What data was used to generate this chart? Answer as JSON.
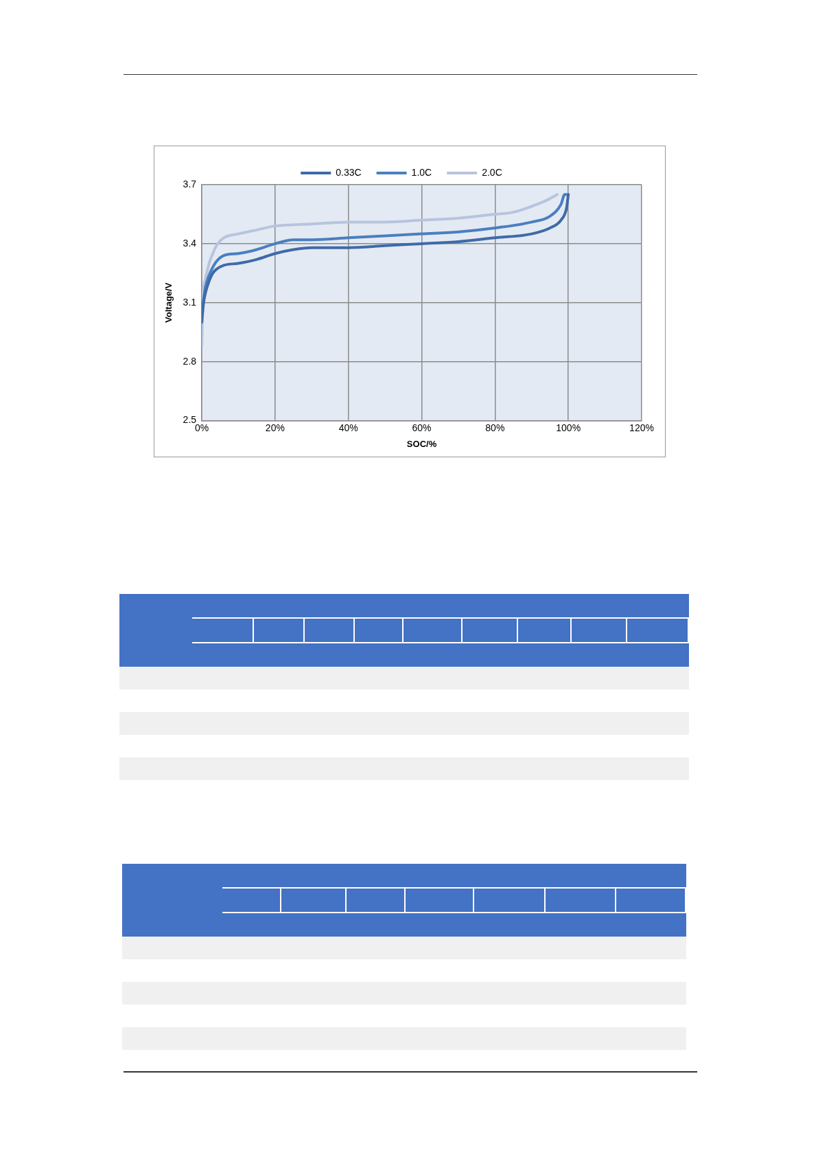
{
  "chart_data": {
    "type": "line",
    "xlabel": "SOC/%",
    "ylabel": "Voltage/V",
    "xlim": [
      0,
      120
    ],
    "xticks": [
      {
        "value": 0,
        "label": "0%"
      },
      {
        "value": 20,
        "label": "20%"
      },
      {
        "value": 40,
        "label": "40%"
      },
      {
        "value": 60,
        "label": "60%"
      },
      {
        "value": 80,
        "label": "80%"
      },
      {
        "value": 100,
        "label": "100%"
      },
      {
        "value": 120,
        "label": "120%"
      }
    ],
    "ylim": [
      2.5,
      3.7
    ],
    "yticks": [
      2.5,
      2.8,
      3.1,
      3.4,
      3.7
    ],
    "grid": true,
    "legend": "top",
    "marker": "none",
    "line_style": "solid",
    "series": [
      {
        "name": "0.33C",
        "color": "#3e6aa8",
        "x": [
          0,
          0.5,
          1,
          2,
          3,
          4,
          6,
          10,
          15,
          20,
          25,
          30,
          40,
          50,
          60,
          70,
          80,
          90,
          95,
          98,
          99.5,
          100
        ],
        "values": [
          3.0,
          3.1,
          3.15,
          3.21,
          3.25,
          3.27,
          3.29,
          3.3,
          3.32,
          3.35,
          3.37,
          3.38,
          3.38,
          3.39,
          3.4,
          3.41,
          3.43,
          3.45,
          3.48,
          3.52,
          3.58,
          3.65
        ]
      },
      {
        "name": "1.0C",
        "color": "#4a7fc0",
        "x": [
          0,
          0.5,
          1,
          2,
          3,
          4,
          6,
          10,
          15,
          20,
          25,
          30,
          40,
          50,
          60,
          70,
          80,
          90,
          95,
          98,
          99,
          99.5
        ],
        "values": [
          3.04,
          3.12,
          3.18,
          3.24,
          3.28,
          3.31,
          3.34,
          3.35,
          3.37,
          3.4,
          3.42,
          3.42,
          3.43,
          3.44,
          3.45,
          3.46,
          3.48,
          3.51,
          3.54,
          3.6,
          3.65,
          3.65
        ]
      },
      {
        "name": "2.0C",
        "color": "#b8c4de",
        "x": [
          0,
          0.3,
          1,
          2,
          3,
          4,
          6,
          10,
          15,
          20,
          30,
          40,
          50,
          60,
          70,
          80,
          85,
          90,
          94,
          97
        ],
        "values": [
          2.88,
          3.12,
          3.22,
          3.3,
          3.35,
          3.39,
          3.43,
          3.45,
          3.47,
          3.49,
          3.5,
          3.51,
          3.51,
          3.52,
          3.53,
          3.55,
          3.56,
          3.59,
          3.62,
          3.65
        ]
      }
    ]
  }
}
